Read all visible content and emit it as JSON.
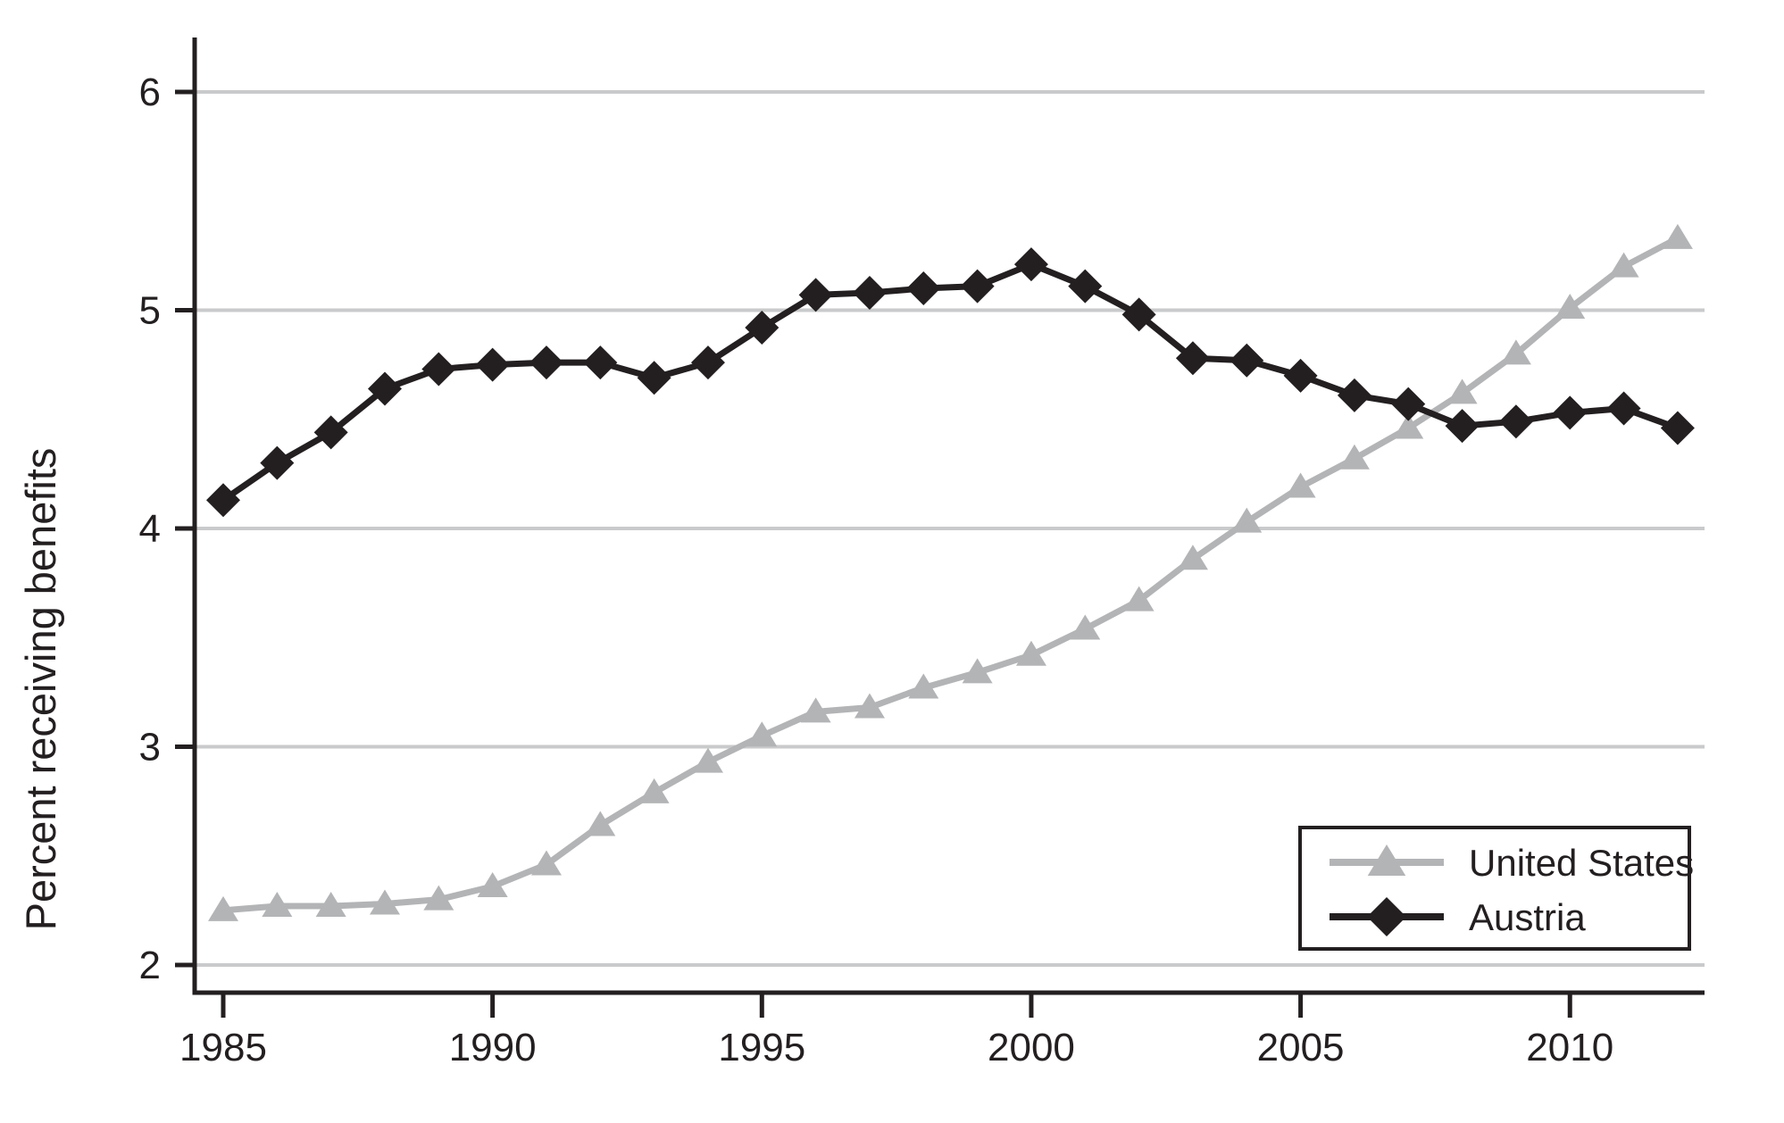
{
  "chart_data": {
    "type": "line",
    "title": "",
    "ylabel": "Percent receiving benefits",
    "xlabel": "",
    "x": [
      1985,
      1986,
      1987,
      1988,
      1989,
      1990,
      1991,
      1992,
      1993,
      1994,
      1995,
      1996,
      1997,
      1998,
      1999,
      2000,
      2001,
      2002,
      2003,
      2004,
      2005,
      2006,
      2007,
      2008,
      2009,
      2010,
      2011,
      2012
    ],
    "series": [
      {
        "name": "United States",
        "marker": "triangle",
        "color": "#b3b4b6",
        "values": [
          2.25,
          2.27,
          2.27,
          2.28,
          2.3,
          2.36,
          2.46,
          2.64,
          2.79,
          2.93,
          3.05,
          3.16,
          3.18,
          3.27,
          3.34,
          3.42,
          3.54,
          3.67,
          3.86,
          4.03,
          4.19,
          4.32,
          4.46,
          4.62,
          4.8,
          5.01,
          5.2,
          5.33
        ]
      },
      {
        "name": "Austria",
        "marker": "diamond",
        "color": "#231f20",
        "values": [
          4.13,
          4.3,
          4.44,
          4.64,
          4.73,
          4.75,
          4.76,
          4.76,
          4.69,
          4.76,
          4.92,
          5.07,
          5.08,
          5.1,
          5.11,
          5.21,
          5.11,
          4.98,
          4.78,
          4.77,
          4.7,
          4.61,
          4.57,
          4.47,
          4.49,
          4.53,
          4.55,
          4.46
        ]
      }
    ],
    "yticks": [
      2,
      3,
      4,
      5,
      6
    ],
    "xticks": [
      1985,
      1990,
      1995,
      2000,
      2005,
      2010
    ],
    "ylim": [
      2,
      6
    ],
    "xlim": [
      1984.47,
      2012.5
    ],
    "grid": "horizontal",
    "legend": {
      "position": "bottom-right",
      "items": [
        {
          "label": "United States",
          "series": 0
        },
        {
          "label": "Austria",
          "series": 1
        }
      ]
    },
    "colors": {
      "background": "#ffffff",
      "axis": "#231f20",
      "gridline": "#c9cacb",
      "text": "#231f20",
      "us_series": "#b3b4b6",
      "austria_series": "#231f20",
      "legend_border": "#231f20",
      "legend_fill": "#ffffff"
    }
  }
}
